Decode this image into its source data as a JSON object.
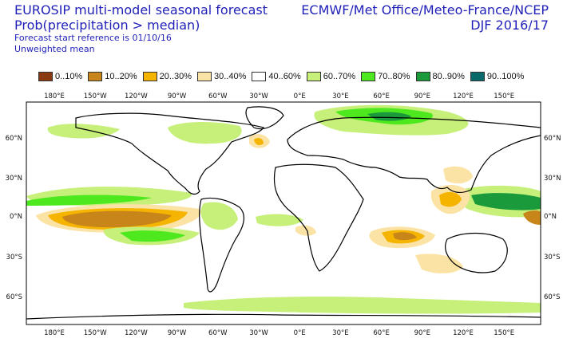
{
  "header": {
    "title_line1": "EUROSIP multi-model seasonal forecast",
    "title_line2": "Prob(precipitation > median)",
    "subtitle_line1": "Forecast start reference is 01/10/16",
    "subtitle_line2": "Unweighted mean",
    "centres": "ECMWF/Met Office/Meteo-France/NCEP",
    "season": "DJF 2016/17"
  },
  "legend": [
    {
      "label": "0..10%",
      "color": "#8b3a0f"
    },
    {
      "label": "10..20%",
      "color": "#c8861a"
    },
    {
      "label": "20..30%",
      "color": "#f5b400"
    },
    {
      "label": "30..40%",
      "color": "#fbe3a5"
    },
    {
      "label": "40..60%",
      "color": "#ffffff"
    },
    {
      "label": "60..70%",
      "color": "#c6f07a"
    },
    {
      "label": "70..80%",
      "color": "#4ee81e"
    },
    {
      "label": "80..90%",
      "color": "#1a9a3a"
    },
    {
      "label": "90..100%",
      "color": "#08696b"
    }
  ],
  "axes": {
    "lon_labels": [
      "180°E",
      "150°W",
      "120°W",
      "90°W",
      "60°W",
      "30°W",
      "0°E",
      "30°E",
      "60°E",
      "90°E",
      "120°E",
      "150°E"
    ],
    "lat_labels_left": [
      "60°N",
      "30°N",
      "0°N",
      "30°S",
      "60°S"
    ],
    "lat_labels_right": [
      "60°N",
      "30°N",
      "0°N",
      "30°S",
      "60°S"
    ]
  }
}
